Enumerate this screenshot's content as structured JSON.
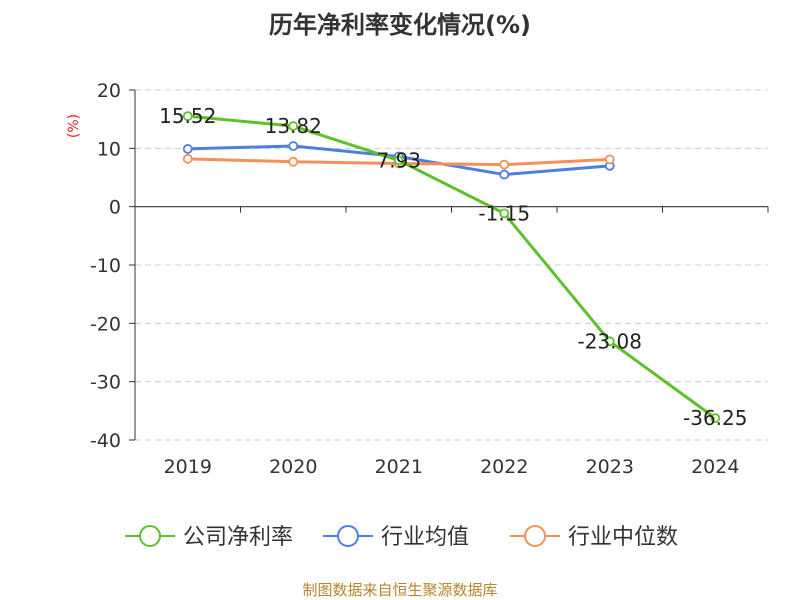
{
  "title": "历年净利率变化情况(%)",
  "source": "制图数据来自恒生聚源数据库",
  "colors": {
    "company": "#5cc22b",
    "industry_avg": "#4f7fdc",
    "industry_median": "#f5905a",
    "unit_label": "#e02020",
    "source": "#b8862e"
  },
  "chart_data": {
    "type": "line",
    "title": "历年净利率变化情况(%)",
    "ylabel": "(%)",
    "xlabel": "",
    "categories": [
      "2019",
      "2020",
      "2021",
      "2022",
      "2023",
      "2024"
    ],
    "ylim": [
      -40,
      20
    ],
    "yticks": [
      20,
      10,
      0,
      -10,
      -20,
      -30,
      -40
    ],
    "ytick_labels": [
      "20",
      "10",
      "0",
      "-10",
      "-20",
      "-30",
      "-40"
    ],
    "grid": true,
    "legend_position": "bottom",
    "series": [
      {
        "name": "公司净利率",
        "color": "#5cc22b",
        "values": [
          15.52,
          13.82,
          7.93,
          -1.15,
          -23.08,
          -36.25
        ],
        "labels": [
          "15.52",
          "13.82",
          "7.93",
          "-1.15",
          "-23.08",
          "-36.25"
        ]
      },
      {
        "name": "行业均值",
        "color": "#4f7fdc",
        "values": [
          9.9,
          10.4,
          8.6,
          5.5,
          7.0,
          null
        ]
      },
      {
        "name": "行业中位数",
        "color": "#f5905a",
        "values": [
          8.2,
          7.7,
          7.4,
          7.2,
          8.1,
          null
        ]
      }
    ]
  }
}
